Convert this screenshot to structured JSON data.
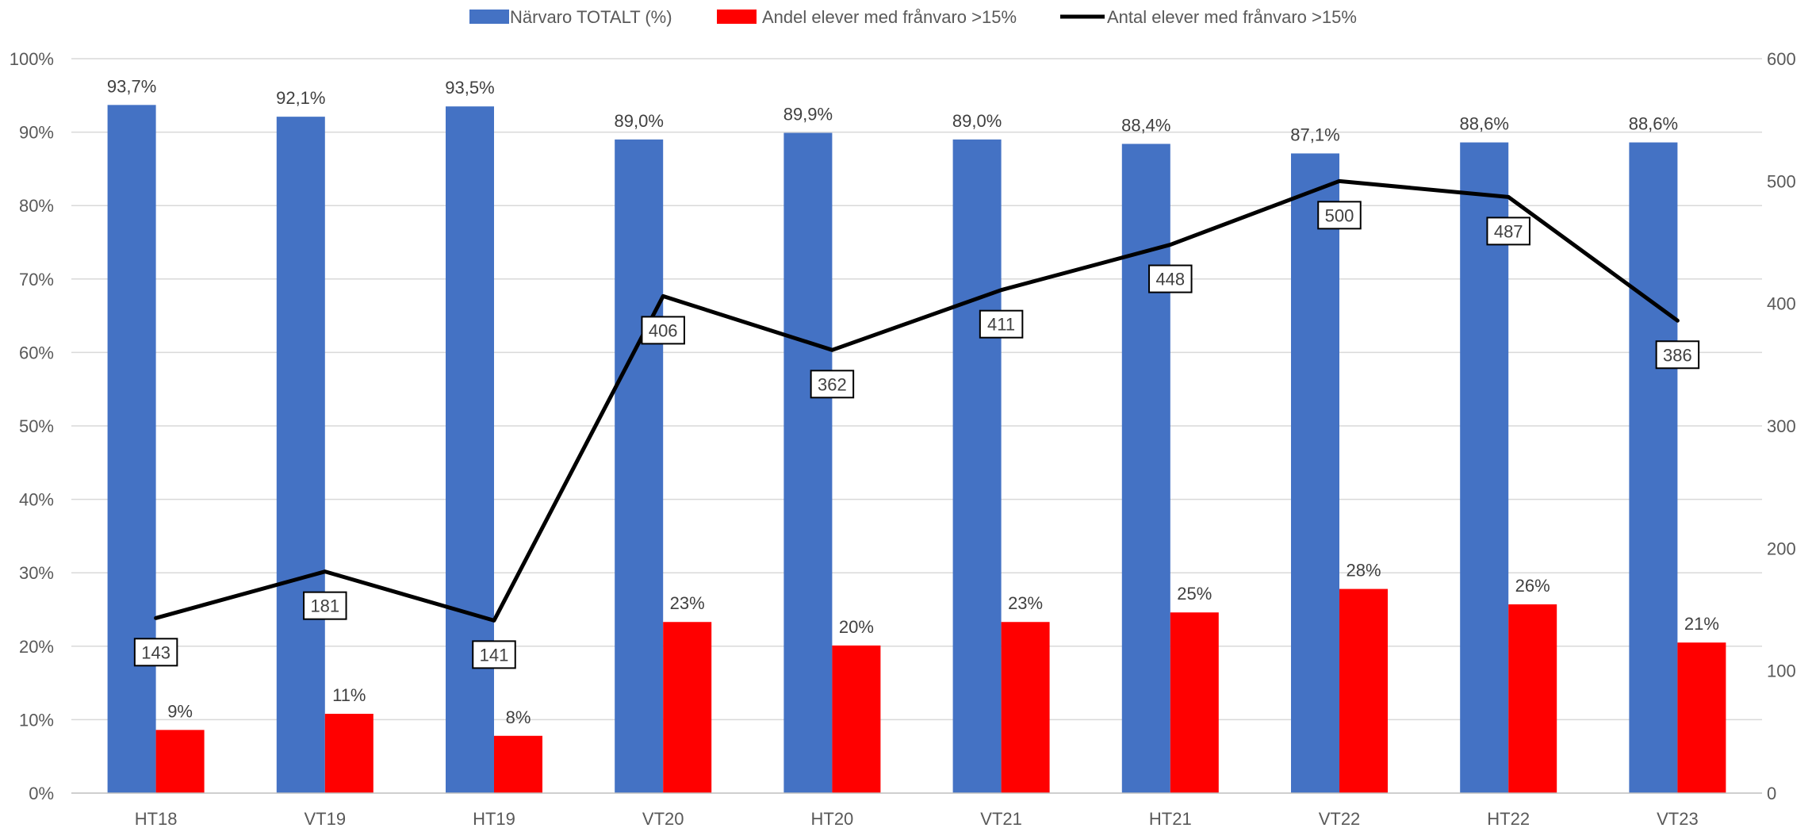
{
  "chart_data": {
    "type": "bar",
    "categories": [
      "HT18",
      "VT19",
      "HT19",
      "VT20",
      "HT20",
      "VT21",
      "HT21",
      "VT22",
      "HT22",
      "VT23"
    ],
    "series": [
      {
        "name": "Närvaro TOTALT (%)",
        "type": "bar",
        "axis": "left",
        "color": "#4472C4",
        "values": [
          93.7,
          92.1,
          93.5,
          89.0,
          89.9,
          89.0,
          88.4,
          87.1,
          88.6,
          88.6
        ],
        "labels": [
          "93,7%",
          "92,1%",
          "93,5%",
          "89,0%",
          "89,9%",
          "89,0%",
          "88,4%",
          "87,1%",
          "88,6%",
          "88,6%"
        ]
      },
      {
        "name": "Andel elever med frånvaro >15%",
        "type": "bar",
        "axis": "left",
        "color": "#FF0000",
        "values": [
          8.6,
          10.8,
          7.8,
          23.3,
          20.1,
          23.3,
          24.6,
          27.8,
          25.7,
          20.5
        ],
        "labels": [
          "9%",
          "11%",
          "8%",
          "23%",
          "20%",
          "23%",
          "25%",
          "28%",
          "26%",
          "21%"
        ]
      },
      {
        "name": "Antal elever med frånvaro >15%",
        "type": "line",
        "axis": "right",
        "color": "#000000",
        "values": [
          143,
          181,
          141,
          406,
          362,
          411,
          448,
          500,
          487,
          386
        ],
        "labels": [
          "143",
          "181",
          "141",
          "406",
          "362",
          "411",
          "448",
          "500",
          "487",
          "386"
        ]
      }
    ],
    "y_left": {
      "ylim": [
        0,
        100
      ],
      "ticks": [
        "0%",
        "10%",
        "20%",
        "30%",
        "40%",
        "50%",
        "60%",
        "70%",
        "80%",
        "90%",
        "100%"
      ]
    },
    "y_right": {
      "ylim": [
        0,
        600
      ],
      "ticks": [
        "0",
        "100",
        "200",
        "300",
        "400",
        "500",
        "600"
      ]
    },
    "legend_position": "top",
    "grid": true,
    "title": "",
    "xlabel": "",
    "ylabel": ""
  }
}
